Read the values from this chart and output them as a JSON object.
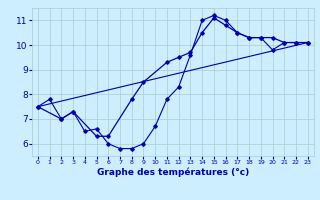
{
  "title": "Graphe des températures (°c)",
  "bg_color": "#cceeff",
  "grid_color": "#aacccc",
  "line_color": "#0000aa",
  "xlim": [
    -0.5,
    23.5
  ],
  "ylim": [
    5.5,
    11.5
  ],
  "yticks": [
    6,
    7,
    8,
    9,
    10,
    11
  ],
  "xticks": [
    0,
    1,
    2,
    3,
    4,
    5,
    6,
    7,
    8,
    9,
    10,
    11,
    12,
    13,
    14,
    15,
    16,
    17,
    18,
    19,
    20,
    21,
    22,
    23
  ],
  "series1_x": [
    0,
    1,
    2,
    3,
    4,
    5,
    6,
    7,
    8,
    9,
    10,
    11,
    12,
    13,
    14,
    15,
    16,
    17,
    18,
    19,
    20,
    21,
    22,
    23
  ],
  "series1_y": [
    7.5,
    7.8,
    7.0,
    7.3,
    6.5,
    6.6,
    6.0,
    5.8,
    5.8,
    6.0,
    6.7,
    7.8,
    8.3,
    9.6,
    11.0,
    11.2,
    11.0,
    10.5,
    10.3,
    10.3,
    9.8,
    10.1,
    10.1,
    10.1
  ],
  "series2_x": [
    0,
    2,
    3,
    5,
    6,
    8,
    9,
    11,
    12,
    13,
    14,
    15,
    16,
    17,
    18,
    19,
    20,
    21,
    22,
    23
  ],
  "series2_y": [
    7.5,
    7.0,
    7.3,
    6.3,
    6.3,
    7.8,
    8.5,
    9.3,
    9.5,
    9.7,
    10.5,
    11.1,
    10.8,
    10.5,
    10.3,
    10.3,
    10.3,
    10.1,
    10.1,
    10.1
  ],
  "series3_x": [
    0,
    23
  ],
  "series3_y": [
    7.5,
    10.1
  ]
}
